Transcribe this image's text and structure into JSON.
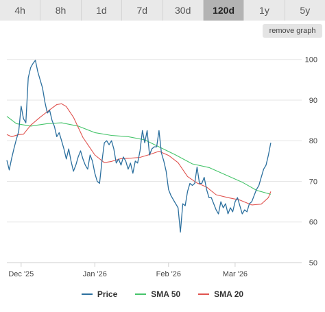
{
  "range_tabs": [
    {
      "label": "4h",
      "active": false
    },
    {
      "label": "8h",
      "active": false
    },
    {
      "label": "1d",
      "active": false
    },
    {
      "label": "7d",
      "active": false
    },
    {
      "label": "30d",
      "active": false
    },
    {
      "label": "120d",
      "active": true
    },
    {
      "label": "1y",
      "active": false
    },
    {
      "label": "5y",
      "active": false
    }
  ],
  "remove_graph_label": "remove graph",
  "colors": {
    "price": "#2b6f9e",
    "sma50": "#45c46a",
    "sma20": "#e0534f",
    "grid": "#e6e6e6"
  },
  "chart_data": {
    "type": "line",
    "title": "",
    "xlabel": "",
    "ylabel": "",
    "ylim": [
      50,
      104
    ],
    "xlim": [
      "2025-11-25",
      "2026-03-29"
    ],
    "y_ticks": [
      50,
      60,
      70,
      80,
      90,
      100
    ],
    "x_ticks": [
      {
        "label": "Dec '25",
        "date": "2025-12-01"
      },
      {
        "label": "Jan '26",
        "date": "2026-01-01"
      },
      {
        "label": "Feb '26",
        "date": "2026-02-01"
      },
      {
        "label": "Mar '26",
        "date": "2026-03-01"
      }
    ],
    "grid": "horizontal",
    "legend_position": "bottom",
    "series": [
      {
        "name": "Price",
        "color_key": "price",
        "points": [
          [
            "2025-11-25",
            75.2
          ],
          [
            "2025-11-26",
            72.8
          ],
          [
            "2025-11-27",
            75.6
          ],
          [
            "2025-11-28",
            78.1
          ],
          [
            "2025-11-29",
            80.4
          ],
          [
            "2025-11-30",
            82.3
          ],
          [
            "2025-12-01",
            88.5
          ],
          [
            "2025-12-02",
            85.4
          ],
          [
            "2025-12-03",
            84.4
          ],
          [
            "2025-12-04",
            95.5
          ],
          [
            "2025-12-05",
            98.0
          ],
          [
            "2025-12-06",
            99.0
          ],
          [
            "2025-12-07",
            99.8
          ],
          [
            "2025-12-08",
            97.0
          ],
          [
            "2025-12-09",
            95.0
          ],
          [
            "2025-12-10",
            93.0
          ],
          [
            "2025-12-11",
            89.5
          ],
          [
            "2025-12-12",
            86.8
          ],
          [
            "2025-12-13",
            87.5
          ],
          [
            "2025-12-14",
            85.0
          ],
          [
            "2025-12-15",
            83.5
          ],
          [
            "2025-12-16",
            81.0
          ],
          [
            "2025-12-17",
            82.0
          ],
          [
            "2025-12-18",
            80.0
          ],
          [
            "2025-12-19",
            78.0
          ],
          [
            "2025-12-20",
            75.5
          ],
          [
            "2025-12-21",
            78.0
          ],
          [
            "2025-12-22",
            75.0
          ],
          [
            "2025-12-23",
            72.5
          ],
          [
            "2025-12-24",
            74.0
          ],
          [
            "2025-12-25",
            76.0
          ],
          [
            "2025-12-26",
            77.5
          ],
          [
            "2025-12-27",
            75.5
          ],
          [
            "2025-12-28",
            74.0
          ],
          [
            "2025-12-29",
            73.0
          ],
          [
            "2025-12-30",
            76.5
          ],
          [
            "2025-12-31",
            75.0
          ],
          [
            "2026-01-01",
            72.0
          ],
          [
            "2026-01-02",
            70.0
          ],
          [
            "2026-01-03",
            69.5
          ],
          [
            "2026-01-04",
            75.0
          ],
          [
            "2026-01-05",
            79.5
          ],
          [
            "2026-01-06",
            80.0
          ],
          [
            "2026-01-07",
            79.0
          ],
          [
            "2026-01-08",
            80.0
          ],
          [
            "2026-01-09",
            78.0
          ],
          [
            "2026-01-10",
            74.5
          ],
          [
            "2026-01-11",
            75.5
          ],
          [
            "2026-01-12",
            74.0
          ],
          [
            "2026-01-13",
            76.0
          ],
          [
            "2026-01-14",
            75.0
          ],
          [
            "2026-01-15",
            73.0
          ],
          [
            "2026-01-16",
            74.5
          ],
          [
            "2026-01-17",
            72.0
          ],
          [
            "2026-01-18",
            75.0
          ],
          [
            "2026-01-19",
            74.5
          ],
          [
            "2026-01-20",
            77.5
          ],
          [
            "2026-01-21",
            82.5
          ],
          [
            "2026-01-22",
            79.5
          ],
          [
            "2026-01-23",
            82.5
          ],
          [
            "2026-01-24",
            76.5
          ],
          [
            "2026-01-25",
            78.0
          ],
          [
            "2026-01-26",
            78.5
          ],
          [
            "2026-01-27",
            78.5
          ],
          [
            "2026-01-28",
            82.5
          ],
          [
            "2026-01-29",
            77.0
          ],
          [
            "2026-01-30",
            75.0
          ],
          [
            "2026-01-31",
            72.5
          ],
          [
            "2026-02-01",
            68.0
          ],
          [
            "2026-02-02",
            66.5
          ],
          [
            "2026-02-03",
            65.5
          ],
          [
            "2026-02-04",
            64.5
          ],
          [
            "2026-02-05",
            63.5
          ],
          [
            "2026-02-06",
            57.5
          ],
          [
            "2026-02-07",
            64.5
          ],
          [
            "2026-02-08",
            64.0
          ],
          [
            "2026-02-09",
            67.5
          ],
          [
            "2026-02-10",
            69.5
          ],
          [
            "2026-02-11",
            69.0
          ],
          [
            "2026-02-12",
            69.5
          ],
          [
            "2026-02-13",
            73.5
          ],
          [
            "2026-02-14",
            69.5
          ],
          [
            "2026-02-15",
            69.5
          ],
          [
            "2026-02-16",
            71.0
          ],
          [
            "2026-02-17",
            68.0
          ],
          [
            "2026-02-18",
            66.0
          ],
          [
            "2026-02-19",
            66.0
          ],
          [
            "2026-02-20",
            64.5
          ],
          [
            "2026-02-21",
            63.0
          ],
          [
            "2026-02-22",
            62.0
          ],
          [
            "2026-02-23",
            65.0
          ],
          [
            "2026-02-24",
            63.5
          ],
          [
            "2026-02-25",
            64.5
          ],
          [
            "2026-02-26",
            62.0
          ],
          [
            "2026-02-27",
            63.5
          ],
          [
            "2026-02-28",
            62.5
          ],
          [
            "2026-03-01",
            65.0
          ],
          [
            "2026-03-02",
            66.0
          ],
          [
            "2026-03-03",
            64.0
          ],
          [
            "2026-03-04",
            62.0
          ],
          [
            "2026-03-05",
            63.0
          ],
          [
            "2026-03-06",
            62.5
          ],
          [
            "2026-03-07",
            64.5
          ],
          [
            "2026-03-08",
            65.0
          ],
          [
            "2026-03-09",
            66.5
          ],
          [
            "2026-03-10",
            68.0
          ],
          [
            "2026-03-11",
            69.0
          ],
          [
            "2026-03-12",
            71.0
          ],
          [
            "2026-03-13",
            73.0
          ],
          [
            "2026-03-14",
            74.0
          ],
          [
            "2026-03-15",
            76.5
          ],
          [
            "2026-03-16",
            79.5
          ]
        ]
      },
      {
        "name": "SMA 50",
        "color_key": "sma50",
        "points": [
          [
            "2025-11-25",
            86.0
          ],
          [
            "2025-11-29",
            84.2
          ],
          [
            "2025-12-05",
            83.6
          ],
          [
            "2025-12-12",
            84.2
          ],
          [
            "2025-12-18",
            84.4
          ],
          [
            "2025-12-25",
            83.6
          ],
          [
            "2026-01-01",
            82.0
          ],
          [
            "2026-01-08",
            81.3
          ],
          [
            "2026-01-15",
            81.0
          ],
          [
            "2026-01-22",
            80.2
          ],
          [
            "2026-01-29",
            78.2
          ],
          [
            "2026-02-04",
            76.5
          ],
          [
            "2026-02-11",
            74.3
          ],
          [
            "2026-02-18",
            73.4
          ],
          [
            "2026-02-25",
            71.6
          ],
          [
            "2026-03-04",
            69.8
          ],
          [
            "2026-03-10",
            67.8
          ],
          [
            "2026-03-16",
            66.8
          ]
        ]
      },
      {
        "name": "SMA 20",
        "color_key": "sma20",
        "points": [
          [
            "2025-11-25",
            81.5
          ],
          [
            "2025-11-27",
            81.0
          ],
          [
            "2025-11-30",
            81.5
          ],
          [
            "2025-12-02",
            81.6
          ],
          [
            "2025-12-05",
            83.8
          ],
          [
            "2025-12-09",
            85.8
          ],
          [
            "2025-12-13",
            87.6
          ],
          [
            "2025-12-16",
            88.9
          ],
          [
            "2025-12-18",
            89.1
          ],
          [
            "2025-12-20",
            88.4
          ],
          [
            "2025-12-23",
            85.8
          ],
          [
            "2025-12-27",
            80.8
          ],
          [
            "2026-01-01",
            76.5
          ],
          [
            "2026-01-05",
            74.6
          ],
          [
            "2026-01-08",
            74.9
          ],
          [
            "2026-01-12",
            75.6
          ],
          [
            "2026-01-16",
            75.7
          ],
          [
            "2026-01-20",
            75.9
          ],
          [
            "2026-01-24",
            76.6
          ],
          [
            "2026-01-28",
            77.4
          ],
          [
            "2026-02-01",
            76.4
          ],
          [
            "2026-02-05",
            74.6
          ],
          [
            "2026-02-09",
            71.2
          ],
          [
            "2026-02-13",
            69.6
          ],
          [
            "2026-02-17",
            68.6
          ],
          [
            "2026-02-21",
            66.7
          ],
          [
            "2026-02-26",
            66.0
          ],
          [
            "2026-03-03",
            65.4
          ],
          [
            "2026-03-08",
            64.2
          ],
          [
            "2026-03-12",
            64.4
          ],
          [
            "2026-03-15",
            66.0
          ],
          [
            "2026-03-16",
            67.5
          ]
        ]
      }
    ]
  }
}
